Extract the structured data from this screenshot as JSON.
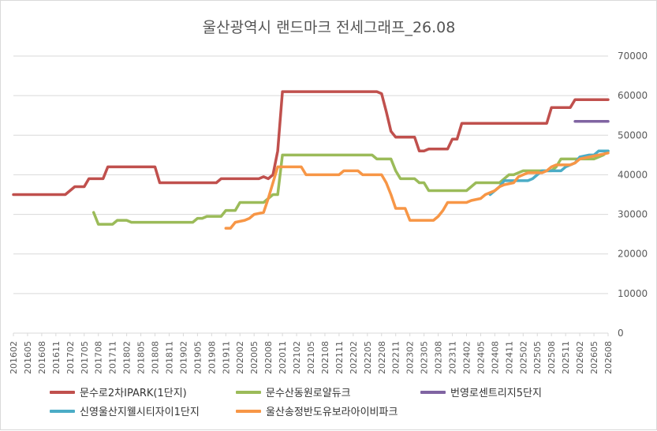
{
  "chart_data": {
    "type": "line",
    "title": "울산광역시 랜드마크 전세그래프_26.08",
    "xlabel": "",
    "ylabel": "",
    "ylim": [
      0,
      70000
    ],
    "yticks": [
      "0",
      "10000",
      "20000",
      "30000",
      "40000",
      "50000",
      "60000",
      "70000"
    ],
    "y_axis_side": "right",
    "grid": true,
    "legend_position": "bottom",
    "x_range": [
      "201602",
      "202608"
    ],
    "x_tick_labels": [
      "201602",
      "201605",
      "201608",
      "201611",
      "201702",
      "201705",
      "201708",
      "201711",
      "201802",
      "201805",
      "201808",
      "201811",
      "201902",
      "201905",
      "201908",
      "201911",
      "202002",
      "202005",
      "202008",
      "202011",
      "202102",
      "202105",
      "202108",
      "202111",
      "202202",
      "202205",
      "202208",
      "202211",
      "202302",
      "202305",
      "202308",
      "202311",
      "202402",
      "202405",
      "202408",
      "202411",
      "202502",
      "202505",
      "202508",
      "202511",
      "202602",
      "202605",
      "202608"
    ],
    "series": [
      {
        "name": "문수로2차IPARK(1단지)",
        "color": "#c0504d",
        "points": [
          [
            "201602",
            35000
          ],
          [
            "201612",
            35000
          ],
          [
            "201701",
            35000
          ],
          [
            "201703",
            37000
          ],
          [
            "201705",
            37000
          ],
          [
            "201706",
            39000
          ],
          [
            "201709",
            39000
          ],
          [
            "201710",
            42000
          ],
          [
            "201808",
            42000
          ],
          [
            "201809",
            38000
          ],
          [
            "201907",
            38000
          ],
          [
            "201909",
            38000
          ],
          [
            "201910",
            39000
          ],
          [
            "202006",
            39000
          ],
          [
            "202007",
            39500
          ],
          [
            "202008",
            39000
          ],
          [
            "202009",
            40000
          ],
          [
            "202010",
            46000
          ],
          [
            "202011",
            61000
          ],
          [
            "202207",
            61000
          ],
          [
            "202208",
            60500
          ],
          [
            "202209",
            56000
          ],
          [
            "202210",
            51000
          ],
          [
            "202211",
            49500
          ],
          [
            "202303",
            49500
          ],
          [
            "202304",
            46000
          ],
          [
            "202305",
            46000
          ],
          [
            "202306",
            46500
          ],
          [
            "202310",
            46500
          ],
          [
            "202311",
            49000
          ],
          [
            "202312",
            49000
          ],
          [
            "202401",
            53000
          ],
          [
            "202507",
            53000
          ],
          [
            "202508",
            57000
          ],
          [
            "202512",
            57000
          ],
          [
            "202601",
            59000
          ],
          [
            "202608",
            59000
          ]
        ]
      },
      {
        "name": "문수산동원로얄듀크",
        "color": "#9bbb59",
        "points": [
          [
            "201707",
            30500
          ],
          [
            "201708",
            27500
          ],
          [
            "201711",
            27500
          ],
          [
            "201712",
            28500
          ],
          [
            "201802",
            28500
          ],
          [
            "201803",
            28000
          ],
          [
            "201904",
            28000
          ],
          [
            "201905",
            29000
          ],
          [
            "201906",
            29000
          ],
          [
            "201907",
            29500
          ],
          [
            "201910",
            29500
          ],
          [
            "201911",
            31000
          ],
          [
            "202001",
            31000
          ],
          [
            "202002",
            33000
          ],
          [
            "202007",
            33000
          ],
          [
            "202008",
            34000
          ],
          [
            "202009",
            35000
          ],
          [
            "202010",
            35000
          ],
          [
            "202011",
            45000
          ],
          [
            "202206",
            45000
          ],
          [
            "202207",
            44000
          ],
          [
            "202210",
            44000
          ],
          [
            "202211",
            41000
          ],
          [
            "202212",
            39000
          ],
          [
            "202303",
            39000
          ],
          [
            "202304",
            38000
          ],
          [
            "202305",
            38000
          ],
          [
            "202306",
            36000
          ],
          [
            "202402",
            36000
          ],
          [
            "202403",
            37000
          ],
          [
            "202404",
            38000
          ],
          [
            "202409",
            38000
          ],
          [
            "202410",
            39000
          ],
          [
            "202411",
            40000
          ],
          [
            "202412",
            40000
          ],
          [
            "202502",
            41000
          ],
          [
            "202508",
            41000
          ],
          [
            "202509",
            42000
          ],
          [
            "202510",
            44000
          ],
          [
            "202602",
            44000
          ],
          [
            "202603",
            44000
          ],
          [
            "202605",
            44000
          ],
          [
            "202607",
            45000
          ],
          [
            "202608",
            46000
          ]
        ]
      },
      {
        "name": "번영로센트리지5단지",
        "color": "#8064a2",
        "points": [
          [
            "202601",
            53500
          ],
          [
            "202608",
            53500
          ]
        ]
      },
      {
        "name": "신영울산지웰시티자이1단지",
        "color": "#4bacc6",
        "points": [
          [
            "202407",
            35000
          ],
          [
            "202408",
            36000
          ],
          [
            "202409",
            37000
          ],
          [
            "202410",
            38500
          ],
          [
            "202502",
            38500
          ],
          [
            "202503",
            38500
          ],
          [
            "202504",
            39000
          ],
          [
            "202506",
            41000
          ],
          [
            "202510",
            41000
          ],
          [
            "202511",
            42000
          ],
          [
            "202601",
            43000
          ],
          [
            "202602",
            44500
          ],
          [
            "202604",
            45000
          ],
          [
            "202605",
            45000
          ],
          [
            "202606",
            46000
          ],
          [
            "202608",
            46000
          ]
        ]
      },
      {
        "name": "울산송정반도유보라아이비파크",
        "color": "#f79646",
        "points": [
          [
            "201911",
            26500
          ],
          [
            "201912",
            26500
          ],
          [
            "202001",
            28000
          ],
          [
            "202003",
            28500
          ],
          [
            "202004",
            29000
          ],
          [
            "202005",
            30000
          ],
          [
            "202007",
            30500
          ],
          [
            "202008",
            34000
          ],
          [
            "202010",
            42000
          ],
          [
            "202103",
            42000
          ],
          [
            "202104",
            40000
          ],
          [
            "202111",
            40000
          ],
          [
            "202112",
            41000
          ],
          [
            "202203",
            41000
          ],
          [
            "202204",
            40000
          ],
          [
            "202208",
            40000
          ],
          [
            "202209",
            38000
          ],
          [
            "202210",
            35000
          ],
          [
            "202211",
            31500
          ],
          [
            "202301",
            31500
          ],
          [
            "202302",
            28500
          ],
          [
            "202307",
            28500
          ],
          [
            "202308",
            29500
          ],
          [
            "202309",
            31000
          ],
          [
            "202310",
            33000
          ],
          [
            "202402",
            33000
          ],
          [
            "202403",
            33500
          ],
          [
            "202405",
            34000
          ],
          [
            "202406",
            35000
          ],
          [
            "202407",
            35500
          ],
          [
            "202408",
            36000
          ],
          [
            "202409",
            37000
          ],
          [
            "202410",
            37500
          ],
          [
            "202412",
            38000
          ],
          [
            "202501",
            39500
          ],
          [
            "202503",
            40500
          ],
          [
            "202506",
            40500
          ],
          [
            "202507",
            41000
          ],
          [
            "202508",
            42000
          ],
          [
            "202509",
            42500
          ],
          [
            "202512",
            42500
          ],
          [
            "202601",
            43000
          ],
          [
            "202602",
            44000
          ],
          [
            "202604",
            44500
          ],
          [
            "202606",
            45000
          ],
          [
            "202608",
            45500
          ]
        ]
      }
    ]
  }
}
